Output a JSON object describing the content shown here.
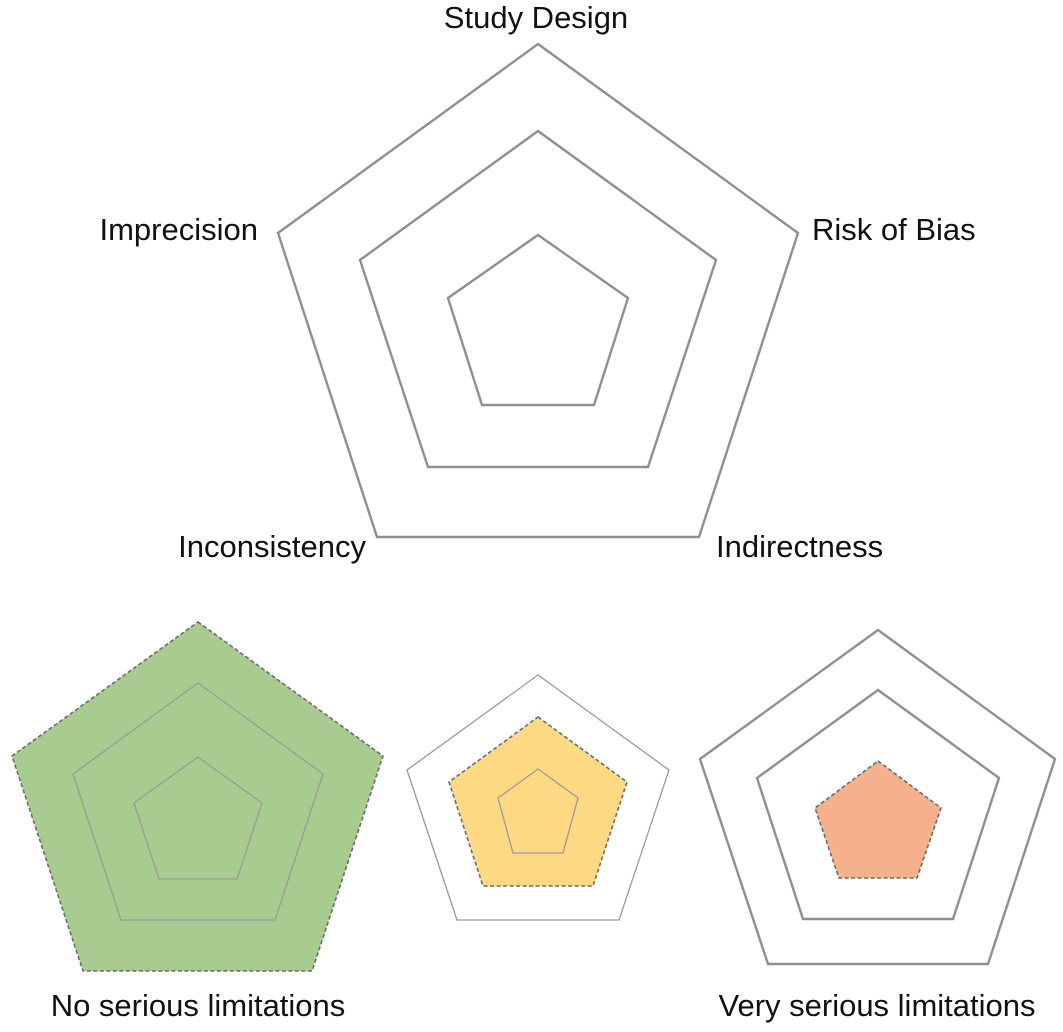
{
  "axes": [
    "Study Design",
    "Risk of Bias",
    "Indirectness",
    "Inconsistency",
    "Imprecision"
  ],
  "levels": 3,
  "examples": [
    {
      "caption": "No serious limitations",
      "fill_level": 3,
      "fill_color": "#a8cc8f"
    },
    {
      "caption": "",
      "fill_level": 2,
      "fill_color": "#fdd984"
    },
    {
      "caption": "Very serious limitations",
      "fill_level": 1,
      "fill_color": "#f4b18b"
    }
  ]
}
